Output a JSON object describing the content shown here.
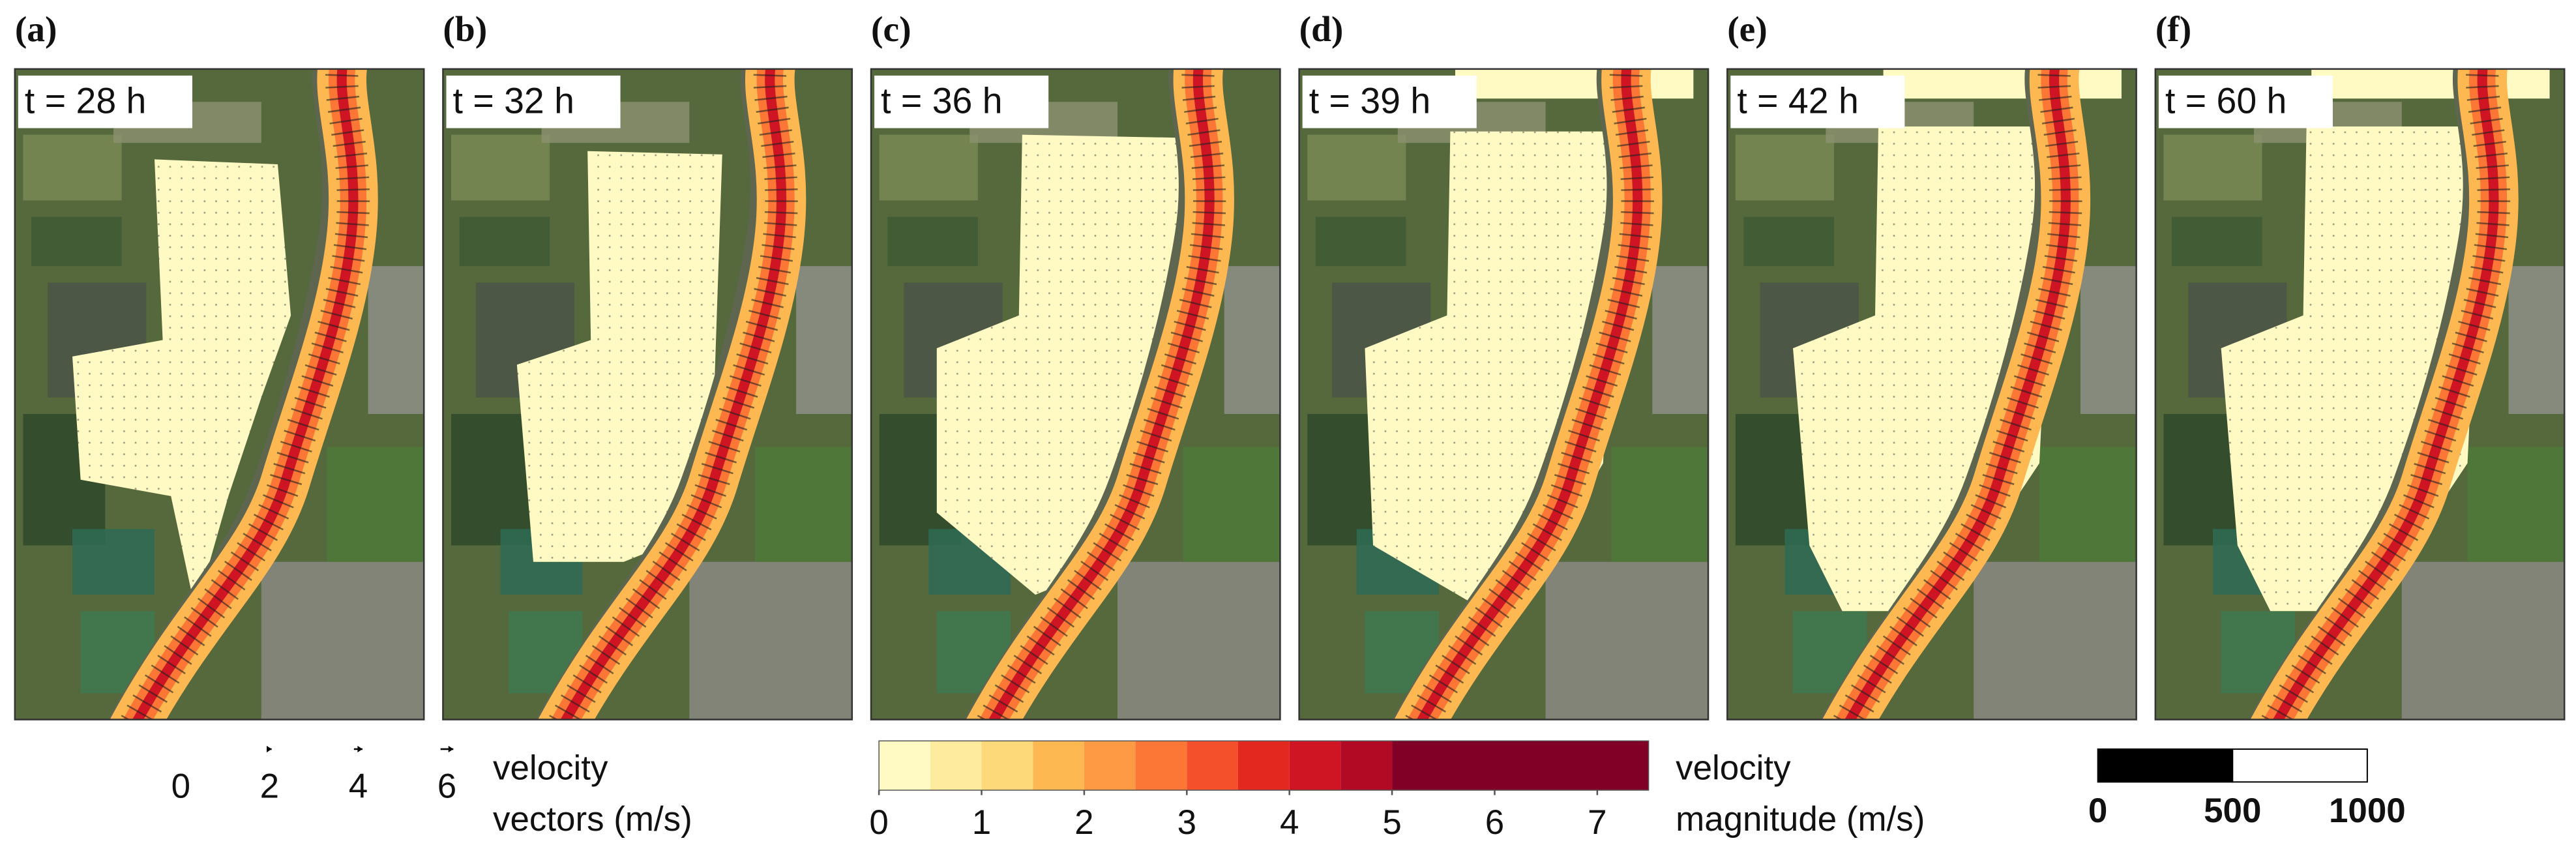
{
  "panels": [
    {
      "label": "(a)",
      "time": "t = 28 h"
    },
    {
      "label": "(b)",
      "time": "t = 32 h"
    },
    {
      "label": "(c)",
      "time": "t = 36 h"
    },
    {
      "label": "(d)",
      "time": "t = 39 h"
    },
    {
      "label": "(e)",
      "time": "t = 42 h"
    },
    {
      "label": "(f)",
      "time": "t = 60 h"
    }
  ],
  "vector_legend": {
    "values": [
      0,
      2,
      4,
      6
    ],
    "label": [
      "velocity",
      "vectors (m/s)"
    ]
  },
  "colorbar": {
    "label": [
      "velocity",
      "magnitude (m/s)"
    ],
    "ticks": [
      0,
      1,
      2,
      3,
      4,
      5,
      6,
      7
    ],
    "lim": [
      0,
      7.5
    ],
    "bounds": [
      0,
      0.5,
      1,
      1.5,
      2,
      2.5,
      3,
      3.5,
      4,
      4.5,
      5,
      7.5
    ],
    "colors": [
      "#fff9c4",
      "#ffeb9e",
      "#fed97a",
      "#feb851",
      "#fd9a43",
      "#fc7636",
      "#f4502b",
      "#e3281f",
      "#cf1424",
      "#b20a25",
      "#800026"
    ]
  },
  "scale_bar": {
    "ticks": [
      0,
      500,
      1000
    ],
    "colors": [
      "#000000",
      "#ffffff"
    ]
  }
}
